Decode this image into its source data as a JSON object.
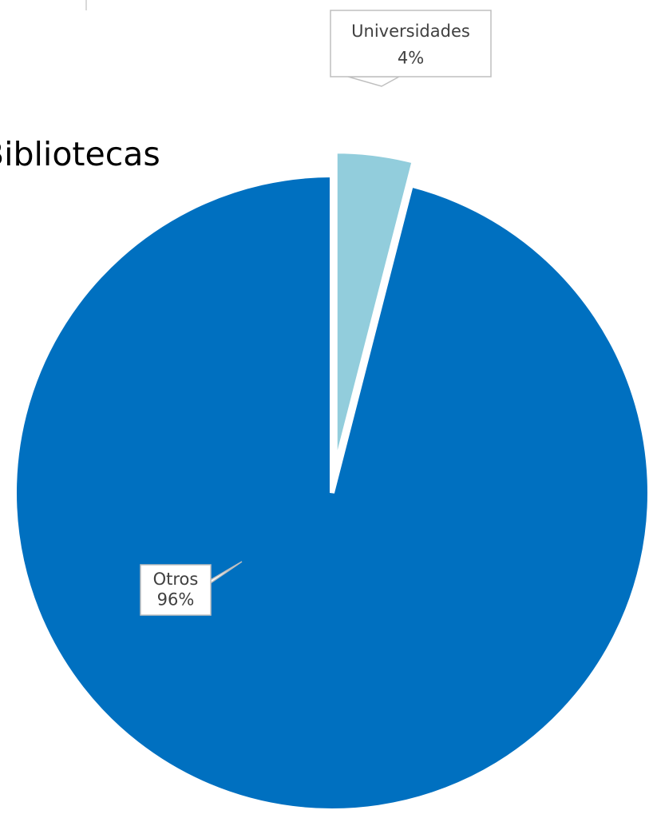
{
  "chart_data": {
    "type": "pie",
    "title": "Bibliotecas",
    "slices": [
      {
        "label": "Universidades",
        "value": 4,
        "value_label": "4%",
        "color": "#92CDDC",
        "exploded": true
      },
      {
        "label": "Otros",
        "value": 96,
        "value_label": "96%",
        "color": "#0070C0",
        "exploded": false
      }
    ],
    "legend": "none",
    "data_labels": "category name and percentage, in callouts"
  }
}
